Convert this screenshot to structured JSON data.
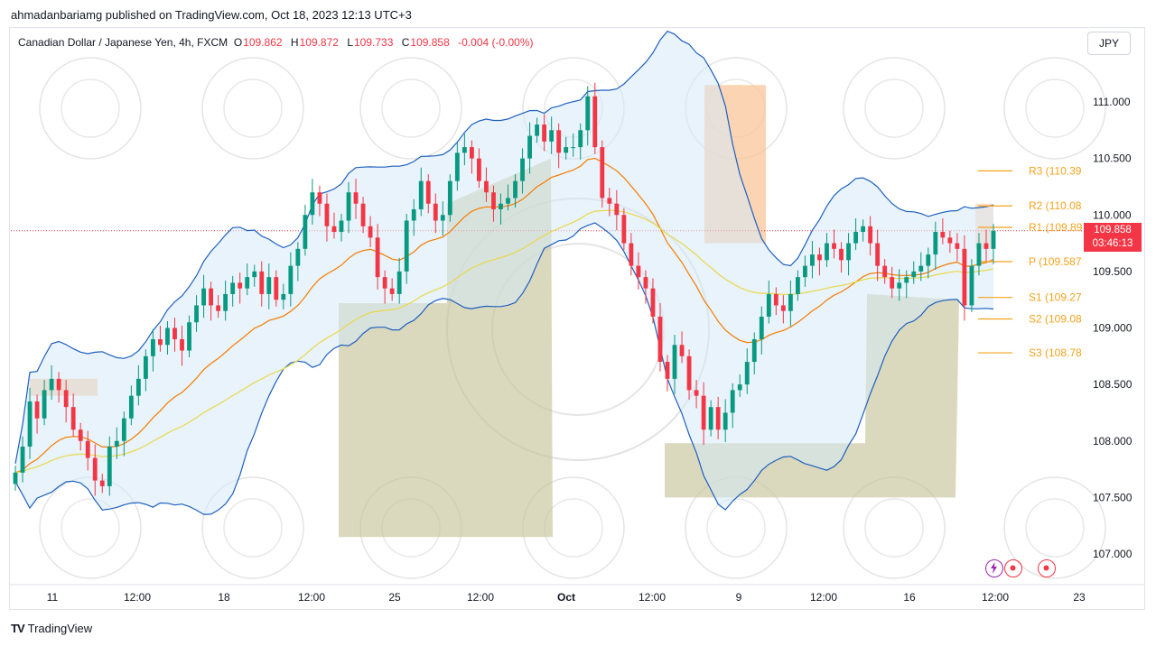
{
  "publisher": "ahmadanbariamg published on TradingView.com, Oct 18, 2023 12:13 UTC+3",
  "footer": {
    "brand": "TradingView",
    "logo_mark": "TV"
  },
  "currency_button": "JPY",
  "legend": {
    "symbol": "Canadian Dollar / Japanese Yen, 4h, FXCM",
    "open_label": "O",
    "open": "109.862",
    "high_label": "H",
    "high": "109.872",
    "low_label": "L",
    "low": "109.733",
    "close_label": "C",
    "close": "109.858",
    "change": "-0.004 (-0.00%)"
  },
  "last_price": {
    "value": "109.858",
    "countdown": "03:46:13"
  },
  "colors": {
    "up": "#089981",
    "down": "#f23645",
    "band": "#1e5fbf",
    "ema_fast": "#f57c00",
    "ema_slow": "#e8d84a",
    "pivot": "#f7a21c",
    "zone_green": "#c7c49a",
    "zone_orange": "#f9c79a"
  },
  "toolbar_icons": [
    "lightning-icon",
    "record-icon",
    "record-icon"
  ],
  "chart_data": {
    "type": "candlestick",
    "title": "Canadian Dollar / Japanese Yen, 4h, FXCM",
    "y_axis": {
      "ticks": [
        111.0,
        110.5,
        110.0,
        109.5,
        109.0,
        108.5,
        108.0,
        107.5,
        107.0
      ],
      "ylim": [
        106.6,
        111.6
      ]
    },
    "x_axis": {
      "ticks": [
        "11",
        "12:00",
        "18",
        "12:00",
        "25",
        "12:00",
        "Oct",
        "12:00",
        "9",
        "12:00",
        "16",
        "12:00",
        "23"
      ]
    },
    "pivot_levels": [
      {
        "label": "R3 (110.39",
        "value": 110.39
      },
      {
        "label": "R2 (110.08",
        "value": 110.08
      },
      {
        "label": "R1 (109.89",
        "value": 109.89
      },
      {
        "label": "P (109.587",
        "value": 109.587
      },
      {
        "label": "S1 (109.27",
        "value": 109.27
      },
      {
        "label": "S2 (109.08",
        "value": 109.08
      },
      {
        "label": "S3 (108.78",
        "value": 108.78
      }
    ],
    "closes": [
      107.72,
      107.95,
      108.35,
      108.2,
      108.45,
      108.55,
      108.45,
      108.3,
      108.1,
      108.0,
      107.85,
      107.65,
      107.6,
      107.95,
      108.0,
      108.2,
      108.4,
      108.55,
      108.75,
      108.9,
      108.85,
      109.0,
      108.9,
      108.8,
      109.05,
      109.2,
      109.35,
      109.2,
      109.15,
      109.3,
      109.4,
      109.35,
      109.45,
      109.5,
      109.3,
      109.45,
      109.25,
      109.3,
      109.55,
      109.7,
      110.0,
      110.2,
      110.1,
      109.9,
      109.85,
      109.95,
      110.2,
      110.1,
      109.9,
      109.8,
      109.45,
      109.35,
      109.3,
      109.5,
      109.95,
      110.05,
      110.3,
      110.1,
      109.95,
      110.0,
      110.3,
      110.55,
      110.6,
      110.5,
      110.3,
      110.2,
      110.05,
      110.1,
      110.15,
      110.3,
      110.5,
      110.7,
      110.8,
      110.65,
      110.75,
      110.55,
      110.6,
      110.6,
      110.75,
      111.05,
      110.6,
      110.15,
      110.1,
      110.0,
      109.75,
      109.55,
      109.45,
      109.35,
      109.1,
      108.7,
      108.55,
      108.85,
      108.75,
      108.45,
      108.4,
      108.1,
      108.3,
      108.1,
      108.25,
      108.45,
      108.5,
      108.7,
      108.9,
      109.1,
      109.3,
      109.2,
      109.15,
      109.3,
      109.45,
      109.55,
      109.65,
      109.6,
      109.75,
      109.7,
      109.6,
      109.75,
      109.85,
      109.9,
      109.75,
      109.55,
      109.45,
      109.35,
      109.4,
      109.45,
      109.5,
      109.55,
      109.65,
      109.85,
      109.8,
      109.75,
      109.7,
      109.2,
      109.55,
      109.75,
      109.7,
      109.86
    ]
  }
}
